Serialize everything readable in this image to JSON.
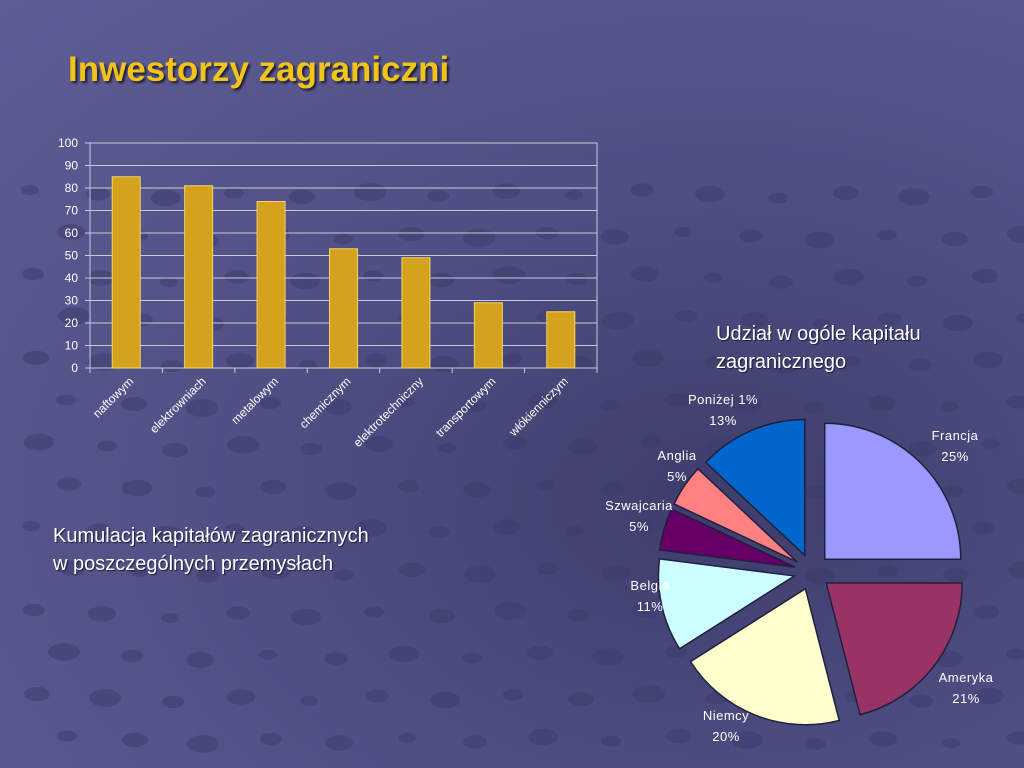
{
  "slide": {
    "title": "Inwestorzy zagraniczni",
    "bar_caption_line1": "Kumulacja kapitałów zagranicznych",
    "bar_caption_line2": "w poszczególnych przemysłach",
    "pie_caption_line1": "Udział w ogóle kapitału",
    "pie_caption_line2": "zagranicznego"
  },
  "colors": {
    "bar": "#d4a21c",
    "bar_edge": "#f3d56a",
    "gridline": "#c9c9dc",
    "pie_edge": "#1f1f3f"
  },
  "chart_data": [
    {
      "type": "bar",
      "categories": [
        "naftowym",
        "elektrowniach",
        "metalowym",
        "chemicznym",
        "elektrotechniczny",
        "transportowym",
        "włókienniczym"
      ],
      "values": [
        85,
        81,
        74,
        53,
        49,
        29,
        25
      ],
      "ylim": [
        0,
        100
      ],
      "yticks": [
        0,
        10,
        20,
        30,
        40,
        50,
        60,
        70,
        80,
        90,
        100
      ],
      "title": "",
      "xlabel": "",
      "ylabel": "",
      "grid": true
    },
    {
      "type": "pie",
      "slices": [
        {
          "label": "Francja",
          "value": 25,
          "value_label": "25%",
          "color": "#9999ff"
        },
        {
          "label": "Ameryka",
          "value": 21,
          "value_label": "21%",
          "color": "#993366"
        },
        {
          "label": "Niemcy",
          "value": 20,
          "value_label": "20%",
          "color": "#ffffcc"
        },
        {
          "label": "Belgia",
          "value": 11,
          "value_label": "11%",
          "color": "#ccffff"
        },
        {
          "label": "Szwajcaria",
          "value": 5,
          "value_label": "5%",
          "color": "#660066"
        },
        {
          "label": "Anglia",
          "value": 5,
          "value_label": "5%",
          "color": "#ff8080"
        },
        {
          "label": "Poniżej 1%",
          "value": 13,
          "value_label": "13%",
          "color": "#0066cc"
        }
      ]
    }
  ]
}
